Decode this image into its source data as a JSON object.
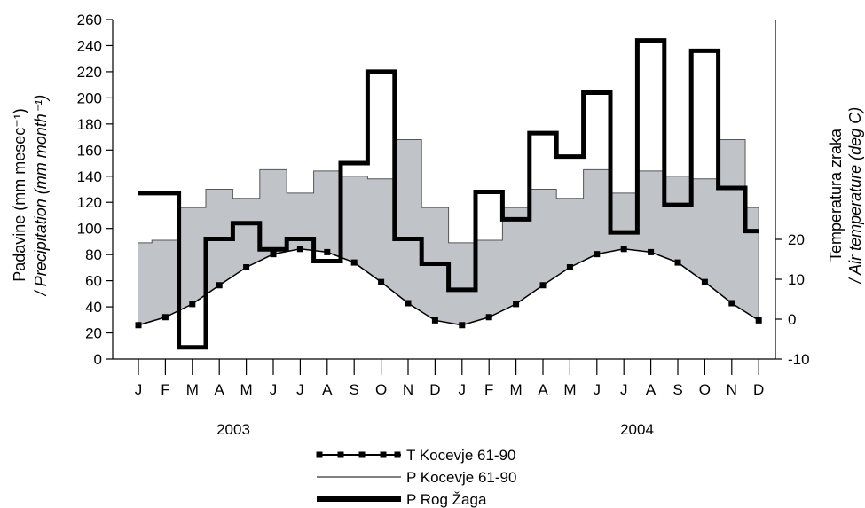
{
  "chart_data": {
    "type": "line",
    "y_left_label": "Padavine (mm mesec⁻¹)",
    "y_left_label_2": "/ Precipitation (mm month⁻¹)",
    "y_right_label": "Temperatura zraka",
    "y_right_label_2": "/ Air temperature (deg C)",
    "ylim_left": [
      0,
      260
    ],
    "y_left_ticks": [
      0,
      20,
      40,
      60,
      80,
      100,
      120,
      140,
      160,
      180,
      200,
      220,
      240,
      260
    ],
    "ylim_right": [
      -10,
      20
    ],
    "y_right_ticks": [
      -10,
      0,
      10,
      20
    ],
    "months": [
      "J",
      "F",
      "M",
      "A",
      "M",
      "J",
      "J",
      "A",
      "S",
      "O",
      "N",
      "D",
      "J",
      "F",
      "M",
      "A",
      "M",
      "J",
      "J",
      "A",
      "S",
      "O",
      "N",
      "D"
    ],
    "years": [
      "2003",
      "2004"
    ],
    "series": [
      {
        "name": "T Kocevje 61-90",
        "axis": "right",
        "style": "line-markers",
        "values": [
          -1.5,
          0.5,
          3.8,
          8.5,
          13.0,
          16.3,
          17.6,
          16.8,
          14.2,
          9.3,
          4.0,
          -0.3,
          -1.5,
          0.5,
          3.8,
          8.5,
          13.0,
          16.3,
          17.6,
          16.8,
          14.2,
          9.3,
          4.0,
          -0.3
        ]
      },
      {
        "name": "P Kocevje 61-90",
        "axis": "left",
        "style": "thin-step-area",
        "values": [
          89,
          91,
          116,
          130,
          123,
          145,
          127,
          144,
          140,
          138,
          168,
          116,
          89,
          91,
          116,
          130,
          123,
          145,
          127,
          144,
          140,
          138,
          168,
          116
        ]
      },
      {
        "name": "P Rog Žaga",
        "axis": "left",
        "style": "thick-step",
        "values": [
          127,
          127,
          9,
          92,
          104,
          84,
          92,
          75,
          150,
          220,
          92,
          73,
          53,
          128,
          107,
          173,
          155,
          204,
          97,
          244,
          118,
          236,
          131,
          98
        ]
      }
    ],
    "colors": {
      "area_fill": "#c0c4c8",
      "line": "#000000"
    },
    "legend_position": "bottom"
  }
}
